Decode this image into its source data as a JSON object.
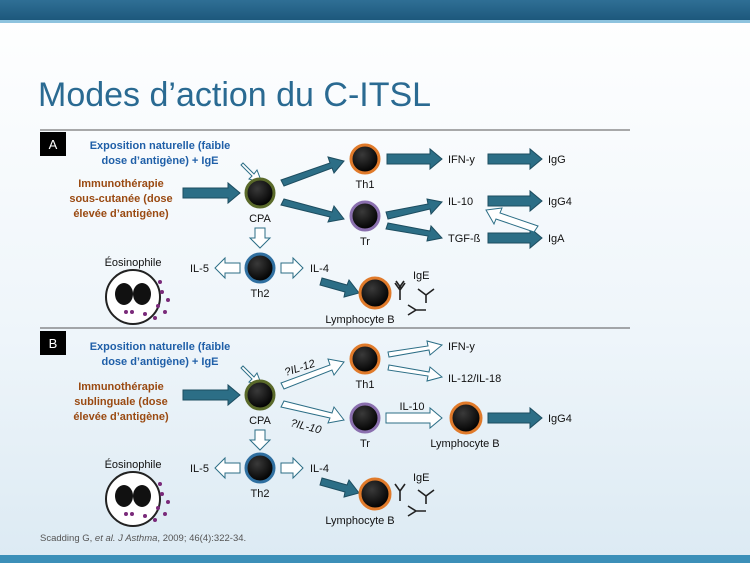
{
  "title": "Modes d’action du C-ITSL",
  "citation": {
    "authors": "Scadding G, ",
    "etal": "et al.",
    "journal": " J Asthma",
    "rest": ", 2009; 46(4):322-34."
  },
  "panel_a": {
    "letter": "A",
    "exposure": [
      "Exposition naturelle (faible",
      "dose d’antigène) + IgE"
    ],
    "therapy": [
      "Immunothérapie",
      "sous-cutanée (dose",
      "élevée d’antigène)"
    ],
    "cpa": "CPA",
    "th1": "Th1",
    "tr": "Tr",
    "th2": "Th2",
    "ifn": "IFN-y",
    "igg": "IgG",
    "il10": "IL-10",
    "igg4": "IgG4",
    "tgf": "TGF-ß",
    "iga": "IgA",
    "eosinophile": "Éosinophile",
    "il5": "IL-5",
    "il4": "IL-4",
    "ige": "IgE",
    "lymphocyte_b": "Lymphocyte B"
  },
  "panel_b": {
    "letter": "B",
    "exposure": [
      "Exposition naturelle (faible",
      "dose d’antigène) + IgE"
    ],
    "therapy": [
      "Immunothérapie",
      "sublinguale (dose",
      "élevée d’antigène)"
    ],
    "cpa": "CPA",
    "il12_q": "?IL-12",
    "il10_q": "?IL-10",
    "th1": "Th1",
    "tr": "Tr",
    "th2": "Th2",
    "ifn": "IFN-y",
    "il12_il18": "IL-12/IL-18",
    "il10": "IL-10",
    "lymphocyte_b_tr": "Lymphocyte B",
    "igg4": "IgG4",
    "eosinophile": "Éosinophile",
    "il5": "IL-5",
    "il4": "IL-4",
    "ige": "IgE",
    "lymphocyte_b": "Lymphocyte B"
  },
  "colors": {
    "teal_arrow": "#2c6e86",
    "th1_ring": "#e07a2a",
    "tr_ring": "#8a6fae",
    "cpa_ring": "#5a6a2a",
    "th2_ring": "#2f6fa0",
    "granule": "#7a2a7a"
  }
}
